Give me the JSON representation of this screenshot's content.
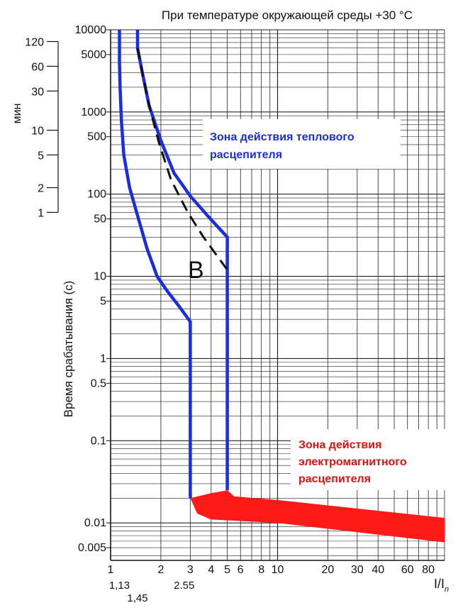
{
  "chart_data": {
    "type": "line",
    "title": "При температуре окружающей среды +30 °C",
    "ylabel": "Время срабатывания (с)",
    "ylabel_minutes": "мин",
    "xlabel_main": "I/I",
    "xlabel_sub": "n",
    "x_scale": "log",
    "y_scale": "log",
    "xlim": [
      1,
      100
    ],
    "ylim": [
      0.0035,
      10000
    ],
    "grid": true,
    "x_ticks": [
      {
        "v": 1,
        "label": "1"
      },
      {
        "v": 2,
        "label": "2"
      },
      {
        "v": 3,
        "label": "3"
      },
      {
        "v": 4,
        "label": "4"
      },
      {
        "v": 5,
        "label": "5"
      },
      {
        "v": 6,
        "label": "6"
      },
      {
        "v": 8,
        "label": "8"
      },
      {
        "v": 10,
        "label": "10"
      },
      {
        "v": 20,
        "label": "20"
      },
      {
        "v": 30,
        "label": "30"
      },
      {
        "v": 40,
        "label": "40"
      },
      {
        "v": 60,
        "label": "60"
      },
      {
        "v": 80,
        "label": "80"
      }
    ],
    "x_markers": [
      {
        "v": 1.13,
        "label": "1,13"
      },
      {
        "v": 1.45,
        "label": "1,45"
      },
      {
        "v": 2.55,
        "label": "2.55"
      }
    ],
    "y_ticks": [
      {
        "v": 10000,
        "label": "10000"
      },
      {
        "v": 5000,
        "label": "5000"
      },
      {
        "v": 1000,
        "label": "1000"
      },
      {
        "v": 500,
        "label": "500"
      },
      {
        "v": 100,
        "label": "100"
      },
      {
        "v": 50,
        "label": "50"
      },
      {
        "v": 10,
        "label": "10"
      },
      {
        "v": 5,
        "label": "5"
      },
      {
        "v": 1,
        "label": "1"
      },
      {
        "v": 0.5,
        "label": "0.5"
      },
      {
        "v": 0.1,
        "label": "0.1"
      },
      {
        "v": 0.01,
        "label": "0.01"
      },
      {
        "v": 0.005,
        "label": "0.005"
      }
    ],
    "minute_ticks": [
      {
        "v": 120,
        "label": "120"
      },
      {
        "v": 60,
        "label": "60"
      },
      {
        "v": 30,
        "label": "30"
      },
      {
        "v": 10,
        "label": "10"
      },
      {
        "v": 5,
        "label": "5"
      },
      {
        "v": 2,
        "label": "2"
      },
      {
        "v": 1,
        "label": "1"
      }
    ],
    "series": [
      {
        "color": "#1a2ee0",
        "style": "solid",
        "points": [
          [
            1.13,
            10000
          ],
          [
            1.13,
            4000
          ],
          [
            1.14,
            2000
          ],
          [
            1.16,
            800
          ],
          [
            1.2,
            300
          ],
          [
            1.3,
            120
          ],
          [
            1.45,
            55
          ],
          [
            1.65,
            22
          ],
          [
            1.9,
            10
          ],
          [
            2.2,
            6.5
          ],
          [
            2.6,
            4.2
          ],
          [
            3,
            2.8
          ],
          [
            3,
            0.02
          ]
        ]
      },
      {
        "color": "#1a2ee0",
        "style": "solid",
        "points": [
          [
            1.45,
            10000
          ],
          [
            1.45,
            6000
          ],
          [
            1.55,
            3000
          ],
          [
            1.7,
            1200
          ],
          [
            2.0,
            450
          ],
          [
            2.4,
            180
          ],
          [
            3,
            95
          ],
          [
            3.8,
            55
          ],
          [
            5,
            30
          ],
          [
            5,
            0.025
          ]
        ]
      },
      {
        "color": "#111111",
        "style": "dashed",
        "points": [
          [
            1.45,
            6000
          ],
          [
            1.55,
            3000
          ],
          [
            1.7,
            1200
          ],
          [
            1.95,
            420
          ],
          [
            2.3,
            150
          ],
          [
            2.9,
            60
          ],
          [
            3.6,
            30
          ],
          [
            5,
            12
          ]
        ]
      }
    ],
    "zones": [
      {
        "label": "Зона действия теплового расцепителя",
        "color": "#1a2ee0"
      },
      {
        "label": "Зона действия электромагнитного расцепителя",
        "color": "#e01010"
      }
    ],
    "magnetic_zone": {
      "color": "#ff1a1a",
      "upper": [
        [
          3,
          0.02
        ],
        [
          4,
          0.023
        ],
        [
          5,
          0.025
        ],
        [
          5.5,
          0.021
        ],
        [
          10,
          0.019
        ],
        [
          100,
          0.0115
        ]
      ],
      "lower": [
        [
          3,
          0.02
        ],
        [
          3.3,
          0.013
        ],
        [
          4,
          0.011
        ],
        [
          10,
          0.01
        ],
        [
          100,
          0.0058
        ]
      ]
    },
    "curve_label": "B"
  }
}
